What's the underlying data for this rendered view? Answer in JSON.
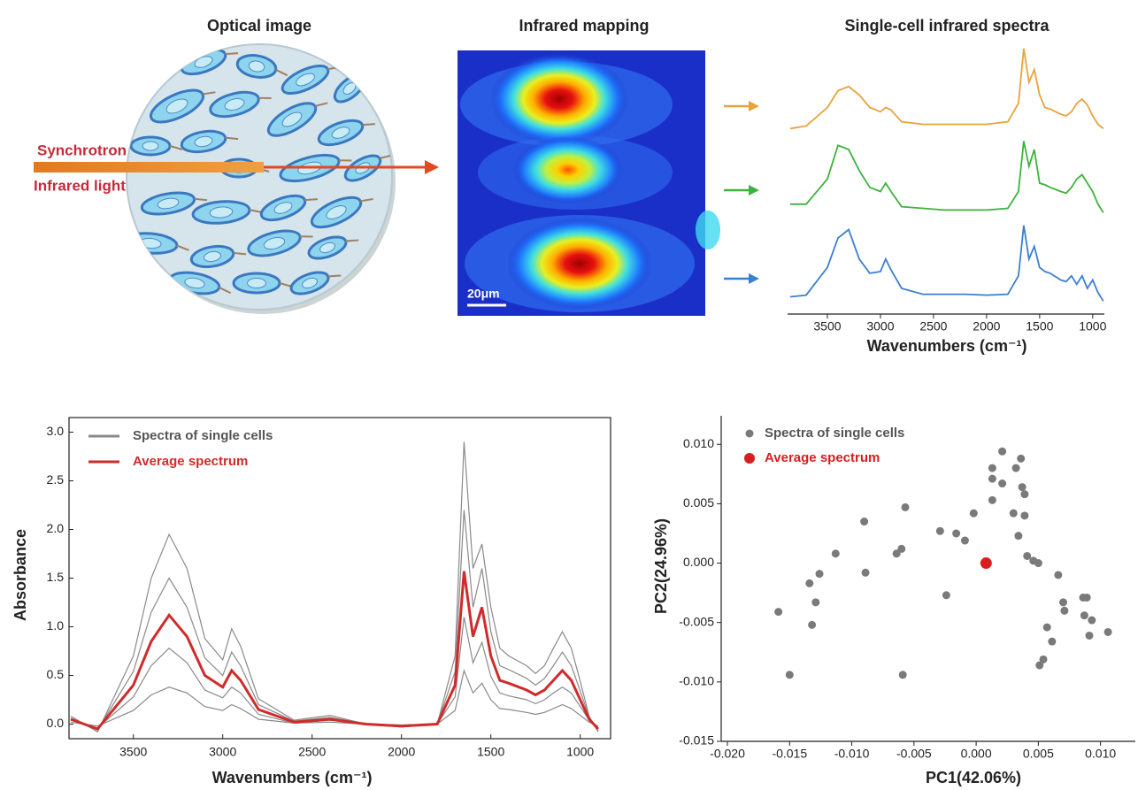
{
  "optical": {
    "title": "Optical image",
    "beam_label_1": "Synchrotron",
    "beam_label_2": "Infrared light"
  },
  "mapping": {
    "title": "Infrared mapping",
    "scale_bar": "20μm"
  },
  "chart_data": [
    {
      "type": "stacked-spectra",
      "title": "Single-cell infrared spectra",
      "xlabel": "Wavenumbers (cm⁻¹)",
      "x": [
        3850,
        3700,
        3500,
        3400,
        3300,
        3200,
        3100,
        3000,
        2950,
        2900,
        2800,
        2600,
        2400,
        2200,
        2000,
        1800,
        1700,
        1650,
        1600,
        1550,
        1500,
        1450,
        1400,
        1300,
        1250,
        1200,
        1150,
        1100,
        1050,
        1000,
        950,
        900
      ],
      "xlim": [
        3875,
        890
      ],
      "xticks": [
        3500,
        3000,
        2500,
        2000,
        1500,
        1000
      ],
      "series": [
        {
          "color": "#e8a33c",
          "values": [
            0.05,
            0.08,
            0.3,
            0.5,
            0.55,
            0.45,
            0.3,
            0.25,
            0.3,
            0.27,
            0.13,
            0.1,
            0.1,
            0.1,
            0.1,
            0.13,
            0.35,
            1.0,
            0.6,
            0.75,
            0.45,
            0.3,
            0.28,
            0.22,
            0.2,
            0.25,
            0.35,
            0.4,
            0.33,
            0.2,
            0.1,
            0.05
          ]
        },
        {
          "color": "#3cb33c",
          "values": [
            0.15,
            0.15,
            0.45,
            0.85,
            0.8,
            0.55,
            0.35,
            0.3,
            0.4,
            0.3,
            0.12,
            0.1,
            0.08,
            0.08,
            0.08,
            0.1,
            0.3,
            0.9,
            0.6,
            0.8,
            0.4,
            0.38,
            0.35,
            0.3,
            0.28,
            0.35,
            0.45,
            0.5,
            0.4,
            0.3,
            0.15,
            0.05
          ]
        },
        {
          "color": "#3a7fd0",
          "values": [
            0.1,
            0.12,
            0.45,
            0.8,
            0.9,
            0.55,
            0.38,
            0.4,
            0.55,
            0.42,
            0.2,
            0.13,
            0.13,
            0.13,
            0.12,
            0.13,
            0.35,
            0.95,
            0.55,
            0.7,
            0.45,
            0.4,
            0.38,
            0.3,
            0.28,
            0.35,
            0.25,
            0.35,
            0.2,
            0.3,
            0.15,
            0.05
          ]
        }
      ]
    },
    {
      "type": "line",
      "xlabel": "Wavenumbers (cm⁻¹)",
      "ylabel": "Absorbance",
      "x": [
        3850,
        3700,
        3500,
        3400,
        3300,
        3200,
        3100,
        3000,
        2950,
        2900,
        2800,
        2600,
        2400,
        2200,
        2000,
        1800,
        1700,
        1650,
        1600,
        1550,
        1500,
        1450,
        1400,
        1300,
        1250,
        1200,
        1150,
        1100,
        1050,
        1000,
        950,
        900
      ],
      "xlim": [
        3860,
        830
      ],
      "ylim": [
        -0.15,
        3.15
      ],
      "xticks": [
        3500,
        3000,
        2500,
        2000,
        1500,
        1000
      ],
      "yticks": [
        {
          "value": 0,
          "label": "0.0"
        },
        {
          "value": 0.5,
          "label": "0.5"
        },
        {
          "value": 1,
          "label": "1.0"
        },
        {
          "value": 1.5,
          "label": "1.5"
        },
        {
          "value": 2,
          "label": "2.0"
        },
        {
          "value": 2.5,
          "label": "2.5"
        },
        {
          "value": 3,
          "label": "3.0"
        }
      ],
      "series": [
        {
          "name": "Spectra of single cells",
          "color": "#8a8a8a",
          "values": [
            0.08,
            -0.08,
            0.7,
            1.5,
            1.95,
            1.6,
            0.88,
            0.66,
            0.98,
            0.8,
            0.26,
            0.04,
            0.09,
            0,
            -0.03,
            0,
            0.7,
            2.9,
            1.6,
            1.85,
            1.2,
            0.78,
            0.7,
            0.6,
            0.52,
            0.6,
            0.78,
            0.95,
            0.78,
            0.44,
            0.08,
            -0.08
          ]
        },
        {
          "color": "#8a8a8a",
          "values": [
            0.06,
            -0.06,
            0.54,
            1.15,
            1.5,
            1.2,
            0.68,
            0.5,
            0.74,
            0.6,
            0.2,
            0.03,
            0.07,
            0,
            -0.03,
            0,
            0.54,
            2.2,
            1.2,
            1.6,
            0.95,
            0.6,
            0.56,
            0.47,
            0.4,
            0.47,
            0.6,
            0.74,
            0.6,
            0.34,
            0.07,
            -0.07
          ]
        },
        {
          "color": "#8a8a8a",
          "values": [
            0.04,
            -0.04,
            0.28,
            0.6,
            0.78,
            0.63,
            0.35,
            0.27,
            0.38,
            0.32,
            0.1,
            0.01,
            0.04,
            0,
            -0.01,
            0,
            0.28,
            1.1,
            0.63,
            0.84,
            0.49,
            0.32,
            0.29,
            0.25,
            0.21,
            0.25,
            0.32,
            0.38,
            0.32,
            0.18,
            0.04,
            -0.04
          ]
        },
        {
          "color": "#8a8a8a",
          "values": [
            0.02,
            -0.02,
            0.14,
            0.3,
            0.38,
            0.32,
            0.18,
            0.14,
            0.2,
            0.16,
            0.05,
            0.01,
            0.02,
            0,
            -0.01,
            0,
            0.14,
            0.55,
            0.32,
            0.42,
            0.25,
            0.16,
            0.15,
            0.12,
            0.1,
            0.12,
            0.16,
            0.2,
            0.16,
            0.09,
            0.02,
            -0.02
          ]
        },
        {
          "name": "Average spectrum",
          "color": "#d02b2b",
          "values": [
            0.05,
            -0.05,
            0.4,
            0.85,
            1.12,
            0.9,
            0.5,
            0.38,
            0.55,
            0.45,
            0.15,
            0.02,
            0.05,
            0,
            -0.02,
            0,
            0.4,
            1.57,
            0.9,
            1.2,
            0.7,
            0.45,
            0.42,
            0.35,
            0.3,
            0.35,
            0.45,
            0.55,
            0.45,
            0.25,
            0.05,
            -0.05
          ]
        }
      ]
    },
    {
      "type": "scatter",
      "xlabel": "PC1(42.06%)",
      "ylabel": "PC2(24.96%)",
      "xlim": [
        -0.0205,
        0.0128
      ],
      "ylim": [
        -0.015,
        0.0124
      ],
      "xticks": [
        {
          "value": -0.02,
          "label": "-0.020"
        },
        {
          "value": -0.015,
          "label": "-0.015"
        },
        {
          "value": -0.01,
          "label": "-0.010"
        },
        {
          "value": -0.005,
          "label": "-0.005"
        },
        {
          "value": 0,
          "label": "0.000"
        },
        {
          "value": 0.005,
          "label": "0.005"
        },
        {
          "value": 0.01,
          "label": "0.010"
        }
      ],
      "yticks": [
        {
          "value": -0.015,
          "label": "-0.015"
        },
        {
          "value": -0.01,
          "label": "-0.010"
        },
        {
          "value": -0.005,
          "label": "-0.005"
        },
        {
          "value": 0,
          "label": "0.000"
        },
        {
          "value": 0.005,
          "label": "0.005"
        },
        {
          "value": 0.01,
          "label": "0.010"
        }
      ],
      "series": [
        {
          "name": "Spectra of single cells",
          "color": "#7a7a7a",
          "x": [
            0.0021,
            0.0036,
            0.0013,
            0.0032,
            0.0013,
            0.0021,
            0.0037,
            0.0039,
            0.0013,
            -0.0002,
            0.003,
            0.0039,
            -0.0057,
            -0.0029,
            -0.0016,
            -0.0009,
            0.0034,
            0.0041,
            0.0046,
            0.005,
            -0.009,
            -0.0113,
            -0.0064,
            -0.006,
            -0.0089,
            -0.0126,
            -0.0134,
            -0.0129,
            -0.0132,
            -0.0159,
            -0.015,
            -0.0059,
            -0.0024,
            0.0066,
            0.007,
            0.0071,
            0.0086,
            0.0089,
            0.0087,
            0.0093,
            0.0091,
            0.0106,
            0.0057,
            0.0061,
            0.0054,
            0.0051
          ],
          "values": [
            0.0094,
            0.0088,
            0.008,
            0.008,
            0.0071,
            0.0067,
            0.0064,
            0.0058,
            0.0053,
            0.0042,
            0.0042,
            0.004,
            0.0047,
            0.0027,
            0.0025,
            0.0019,
            0.0023,
            0.0006,
            0.0002,
            0,
            0.0035,
            0.0008,
            0.0008,
            0.0012,
            -0.0008,
            -0.0009,
            -0.0017,
            -0.0033,
            -0.0052,
            -0.0041,
            -0.0094,
            -0.0094,
            -0.0027,
            -0.001,
            -0.0033,
            -0.004,
            -0.0029,
            -0.0029,
            -0.0044,
            -0.0048,
            -0.0061,
            -0.0058,
            -0.0054,
            -0.0066,
            -0.0081,
            -0.0086
          ]
        },
        {
          "name": "Average spectrum",
          "color": "#d81e1e",
          "x": [
            0.0008
          ],
          "values": [
            0
          ]
        }
      ]
    }
  ]
}
